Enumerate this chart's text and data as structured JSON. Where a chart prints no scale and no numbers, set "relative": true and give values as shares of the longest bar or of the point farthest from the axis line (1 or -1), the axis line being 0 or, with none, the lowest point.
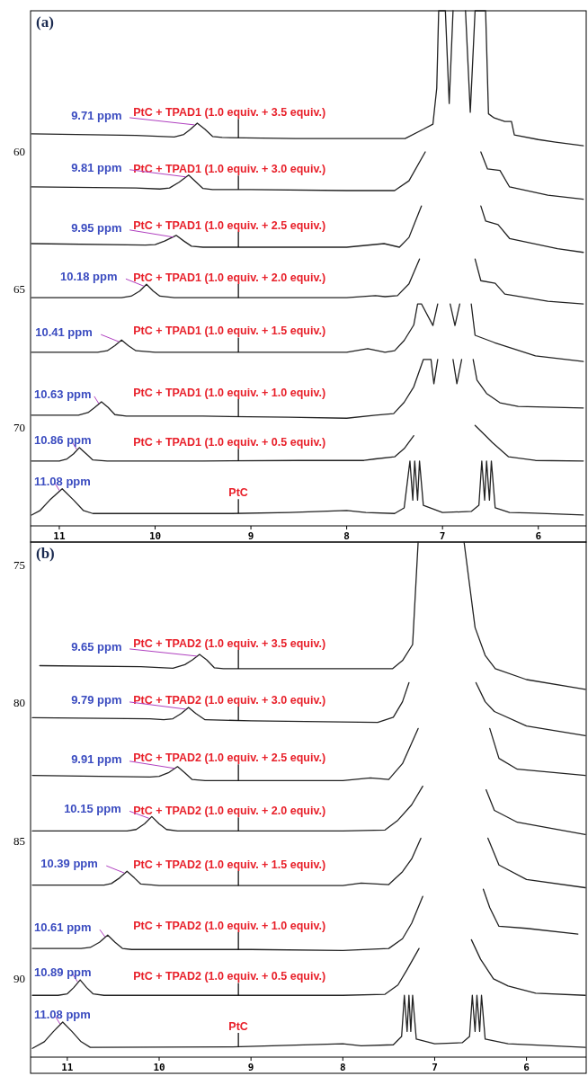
{
  "chart_data": [
    {
      "type": "line",
      "title": "(a)",
      "relative": true,
      "xlim": [
        11.3,
        5.5
      ],
      "xticks": [
        11,
        10,
        9,
        8,
        7,
        6
      ],
      "tick_labels": "x",
      "series": [
        {
          "name": "PtC",
          "color": "#222222",
          "x": [
            11.29,
            11.2,
            11.1,
            10.97,
            10.85,
            10.75,
            10.65,
            10.0,
            9.2,
            8.6,
            8.0,
            7.8,
            7.5,
            7.4,
            7.34,
            7.31,
            7.29,
            7.26,
            7.24,
            7.2,
            7.0,
            6.7,
            6.62,
            6.59,
            6.56,
            6.54,
            6.51,
            6.49,
            6.45,
            6.3,
            6.1,
            5.53
          ],
          "values": [
            0.021,
            0.03,
            0.05,
            0.072,
            0.05,
            0.03,
            0.024,
            0.024,
            0.024,
            0.026,
            0.03,
            0.026,
            0.024,
            0.035,
            0.126,
            0.05,
            0.126,
            0.05,
            0.126,
            0.04,
            0.026,
            0.028,
            0.04,
            0.126,
            0.05,
            0.126,
            0.05,
            0.126,
            0.035,
            0.026,
            0.025,
            0.021
          ]
        },
        {
          "name": "PtC + TPAD1 (1.0 equiv. + 0.5 equiv.)",
          "color": "#222222",
          "x": [
            11.29,
            11.0,
            10.92,
            10.85,
            10.79,
            10.72,
            10.65,
            10.5,
            9.5,
            8.5,
            7.82,
            7.7,
            7.5,
            7.4,
            7.3,
            7.0,
            6.66,
            6.55,
            6.48,
            6.31,
            6.03,
            5.53
          ],
          "values": [
            0.126,
            0.126,
            0.13,
            0.14,
            0.152,
            0.14,
            0.128,
            0.126,
            0.126,
            0.127,
            0.127,
            0.13,
            0.134,
            0.15,
            0.175,
            null,
            0.195,
            0.175,
            0.162,
            0.134,
            0.127,
            0.126
          ]
        },
        {
          "name": "PtC + TPAD1 (1.0 equiv. + 1.0 equiv.)",
          "color": "#222222",
          "x": [
            11.29,
            10.8,
            10.7,
            10.63,
            10.56,
            10.49,
            10.42,
            10.3,
            9.5,
            8.6,
            8.0,
            7.7,
            7.51,
            7.4,
            7.3,
            7.2,
            7.12,
            7.09,
            7.05,
            6.97,
            6.89,
            6.85,
            6.8,
            6.74,
            6.68,
            6.64,
            6.54,
            6.4,
            6.21,
            5.53
          ],
          "values": [
            0.215,
            0.215,
            0.22,
            0.23,
            0.241,
            0.23,
            0.216,
            0.213,
            0.213,
            0.211,
            0.209,
            0.215,
            0.218,
            0.24,
            0.27,
            0.323,
            0.323,
            0.276,
            0.323,
            null,
            0.323,
            0.276,
            0.323,
            null,
            0.323,
            0.283,
            0.257,
            0.239,
            0.232,
            0.229
          ]
        },
        {
          "name": "PtC + TPAD1 (1.0 equiv. + 1.5 equiv.)",
          "color": "#222222",
          "x": [
            11.29,
            10.6,
            10.5,
            10.42,
            10.35,
            10.28,
            10.2,
            10.0,
            9.0,
            8.0,
            7.78,
            7.6,
            7.5,
            7.4,
            7.3,
            7.26,
            7.22,
            7.1,
            7.05,
            6.98,
            6.92,
            6.87,
            6.82,
            6.76,
            6.7,
            6.66,
            6.46,
            6.03,
            5.53
          ],
          "values": [
            0.337,
            0.337,
            0.34,
            0.35,
            0.361,
            0.35,
            0.34,
            0.337,
            0.337,
            0.337,
            0.344,
            0.337,
            0.34,
            0.36,
            0.39,
            0.431,
            0.431,
            0.389,
            0.431,
            null,
            0.431,
            0.389,
            0.431,
            null,
            0.431,
            0.37,
            0.356,
            0.33,
            0.319
          ]
        },
        {
          "name": "PtC + TPAD1 (1.0 equiv. + 2.0 equiv.)",
          "color": "#222222",
          "x": [
            11.29,
            10.35,
            10.25,
            10.16,
            10.09,
            10.02,
            9.95,
            9.8,
            9.0,
            8.0,
            7.7,
            7.6,
            7.47,
            7.35,
            7.24,
            7.0,
            6.66,
            6.6,
            6.45,
            6.35,
            5.9,
            5.53
          ],
          "values": [
            0.443,
            0.443,
            0.446,
            0.456,
            0.469,
            0.456,
            0.446,
            0.443,
            0.443,
            0.443,
            0.447,
            0.445,
            0.447,
            0.47,
            0.518,
            null,
            0.518,
            0.476,
            0.471,
            0.45,
            0.436,
            0.431
          ]
        },
        {
          "name": "PtC + TPAD1 (1.0 equiv. + 2.5 equiv.)",
          "color": "#222222",
          "x": [
            11.29,
            10.1,
            10.0,
            9.9,
            9.78,
            9.7,
            9.62,
            9.5,
            9.0,
            8.0,
            7.61,
            7.45,
            7.35,
            7.22,
            7.0,
            6.6,
            6.55,
            6.42,
            6.3,
            5.8,
            5.53
          ],
          "values": [
            0.548,
            0.545,
            0.546,
            0.553,
            0.564,
            0.553,
            0.543,
            0.541,
            0.541,
            0.541,
            0.548,
            0.541,
            0.56,
            0.621,
            null,
            0.621,
            0.592,
            0.585,
            0.558,
            0.538,
            0.531
          ]
        },
        {
          "name": "PtC + TPAD1 (1.0 equiv. + 3.0 equiv.)",
          "color": "#222222",
          "x": [
            11.29,
            10.2,
            9.95,
            9.85,
            9.75,
            9.65,
            9.57,
            9.5,
            9.4,
            9.0,
            8.0,
            7.5,
            7.35,
            7.18,
            7.0,
            6.6,
            6.53,
            6.4,
            6.3,
            5.9,
            5.53
          ],
          "values": [
            0.658,
            0.656,
            0.654,
            0.656,
            0.667,
            0.681,
            0.667,
            0.655,
            0.653,
            0.653,
            0.651,
            0.651,
            0.67,
            0.726,
            null,
            0.726,
            0.693,
            0.69,
            0.658,
            0.642,
            0.634
          ]
        },
        {
          "name": "PtC + TPAD1 (1.0 equiv. + 3.5 equiv.)",
          "color": "#222222",
          "x": [
            11.29,
            10.2,
            9.8,
            9.7,
            9.63,
            9.56,
            9.48,
            9.4,
            9.3,
            8.54,
            7.39,
            7.2,
            7.1,
            7.06,
            7.04,
            6.97,
            6.93,
            6.89,
            6.8,
            6.76,
            6.71,
            6.66,
            6.55,
            6.52,
            6.46,
            6.35,
            6.28,
            6.25,
            6.0,
            5.82,
            5.53
          ],
          "values": [
            0.761,
            0.758,
            0.755,
            0.76,
            0.77,
            0.782,
            0.77,
            0.756,
            0.754,
            0.752,
            0.752,
            0.77,
            0.78,
            0.85,
            1,
            1,
            0.82,
            1,
            null,
            1,
            0.803,
            1,
            1,
            0.8,
            0.792,
            0.785,
            0.785,
            0.759,
            0.75,
            0.745,
            0.738
          ]
        }
      ],
      "annotations": [
        {
          "text": "11.08 ppm",
          "x": 10.97,
          "y": 0.072
        },
        {
          "text": "10.86 ppm",
          "x": 10.79,
          "y": 0.152
        },
        {
          "text": "10.63 ppm",
          "x": 10.56,
          "y": 0.241
        },
        {
          "text": "10.41 ppm",
          "x": 10.35,
          "y": 0.361
        },
        {
          "text": "10.18 ppm",
          "x": 10.09,
          "y": 0.469
        },
        {
          "text": "9.95 ppm",
          "x": 9.78,
          "y": 0.564
        },
        {
          "text": "9.81 ppm",
          "x": 9.65,
          "y": 0.681
        },
        {
          "text": "9.71 ppm",
          "x": 9.56,
          "y": 0.782
        },
        "60",
        "65",
        "70"
      ]
    },
    {
      "type": "line",
      "title": "(b)",
      "relative": true,
      "xlim": [
        11.4,
        5.35
      ],
      "xticks": [
        11,
        10,
        9,
        8,
        7,
        6
      ],
      "tick_labels": "x",
      "series": [
        {
          "name": "PtC",
          "color": "#222222",
          "x": [
            11.38,
            11.25,
            11.15,
            11.05,
            10.95,
            10.85,
            10.75,
            9.2,
            8.0,
            7.8,
            7.45,
            7.36,
            7.33,
            7.3,
            7.28,
            7.26,
            7.24,
            7.2,
            7.0,
            6.7,
            6.62,
            6.59,
            6.56,
            6.54,
            6.51,
            6.49,
            6.45,
            6.2,
            5.36
          ],
          "values": [
            0.017,
            0.03,
            0.05,
            0.068,
            0.05,
            0.03,
            0.019,
            0.02,
            0.026,
            0.022,
            0.024,
            0.04,
            0.12,
            0.05,
            0.12,
            0.05,
            0.12,
            0.035,
            0.026,
            0.028,
            0.04,
            0.12,
            0.05,
            0.12,
            0.05,
            0.12,
            0.035,
            0.026,
            0.019
          ]
        },
        {
          "name": "PtC + TPAD2 (1.0 equiv. + 0.5 equiv.)",
          "color": "#222222",
          "x": [
            11.38,
            11.1,
            11.0,
            10.93,
            10.86,
            10.79,
            10.72,
            10.6,
            9.5,
            8.0,
            7.54,
            7.4,
            7.3,
            7.17,
            6.9,
            6.6,
            6.5,
            6.36,
            6.2,
            5.9,
            5.36
          ],
          "values": [
            0.12,
            0.12,
            0.123,
            0.135,
            0.15,
            0.135,
            0.123,
            0.12,
            0.12,
            0.12,
            0.122,
            0.14,
            0.17,
            0.211,
            null,
            0.228,
            0.19,
            0.152,
            0.138,
            0.124,
            0.12
          ]
        },
        {
          "name": "PtC + TPAD2 (1.0 equiv. + 1.0 equiv.)",
          "color": "#222222",
          "x": [
            11.38,
            10.85,
            10.75,
            10.65,
            10.56,
            10.48,
            10.4,
            10.3,
            9.0,
            8.0,
            7.5,
            7.35,
            7.25,
            7.13,
            6.8,
            6.47,
            6.4,
            6.3,
            6.0,
            5.44
          ],
          "values": [
            0.211,
            0.211,
            0.213,
            0.223,
            0.237,
            0.223,
            0.211,
            0.209,
            0.209,
            0.207,
            0.211,
            0.23,
            0.26,
            0.312,
            null,
            0.326,
            0.29,
            0.254,
            0.25,
            0.239
          ]
        },
        {
          "name": "PtC + TPAD2 (1.0 equiv. + 1.5 equiv.)",
          "color": "#222222",
          "x": [
            11.38,
            10.6,
            10.52,
            10.43,
            10.35,
            10.27,
            10.2,
            10.0,
            9.0,
            8.0,
            7.8,
            7.5,
            7.35,
            7.25,
            7.15,
            6.8,
            6.42,
            6.3,
            6.0,
            5.36
          ],
          "values": [
            0.334,
            0.334,
            0.337,
            0.348,
            0.361,
            0.348,
            0.336,
            0.333,
            0.333,
            0.333,
            0.338,
            0.335,
            0.36,
            0.385,
            0.425,
            null,
            0.425,
            0.373,
            0.345,
            0.329
          ]
        },
        {
          "name": "PtC + TPAD2 (1.0 equiv. + 2.0 equiv.)",
          "color": "#222222",
          "x": [
            11.38,
            10.35,
            10.25,
            10.16,
            10.08,
            10.0,
            9.92,
            9.8,
            9.0,
            8.0,
            7.54,
            7.4,
            7.25,
            7.13,
            6.8,
            6.44,
            6.35,
            6.1,
            5.36
          ],
          "values": [
            0.439,
            0.439,
            0.442,
            0.453,
            0.467,
            0.453,
            0.442,
            0.439,
            0.439,
            0.439,
            0.441,
            0.46,
            0.49,
            0.526,
            null,
            0.519,
            0.479,
            0.456,
            0.432
          ]
        },
        {
          "name": "PtC + TPAD2 (1.0 equiv. + 2.5 equiv.)",
          "color": "#222222",
          "x": [
            11.38,
            10.1,
            10.0,
            9.9,
            9.8,
            9.72,
            9.64,
            9.5,
            9.0,
            8.0,
            7.7,
            7.5,
            7.35,
            7.18,
            6.8,
            6.4,
            6.3,
            6.1,
            5.36
          ],
          "values": [
            0.547,
            0.544,
            0.545,
            0.552,
            0.564,
            0.552,
            0.539,
            0.537,
            0.537,
            0.537,
            0.542,
            0.539,
            0.57,
            0.638,
            null,
            0.638,
            0.58,
            0.559,
            0.547
          ]
        },
        {
          "name": "PtC + TPAD2 (1.0 equiv. + 3.0 equiv.)",
          "color": "#222222",
          "x": [
            11.38,
            10.1,
            9.95,
            9.85,
            9.76,
            9.68,
            9.6,
            9.5,
            9.0,
            7.62,
            7.45,
            7.35,
            7.28,
            6.9,
            6.55,
            6.45,
            6.35,
            6.0,
            5.36
          ],
          "values": [
            0.659,
            0.657,
            0.655,
            0.657,
            0.667,
            0.679,
            0.667,
            0.655,
            0.653,
            0.65,
            0.66,
            0.69,
            0.727,
            null,
            0.727,
            0.69,
            0.671,
            0.643,
            0.624
          ]
        },
        {
          "name": "PtC + TPAD2 (1.0 equiv. + 3.5 equiv.)",
          "color": "#222222",
          "x": [
            11.3,
            10.2,
            9.85,
            9.72,
            9.64,
            9.56,
            9.48,
            9.4,
            9.3,
            8.0,
            7.46,
            7.35,
            7.24,
            7.18,
            6.9,
            6.68,
            6.56,
            6.45,
            6.34,
            6.0,
            5.36
          ],
          "values": [
            0.76,
            0.758,
            0.755,
            0.762,
            0.771,
            0.782,
            0.771,
            0.756,
            0.754,
            0.754,
            0.754,
            0.77,
            0.801,
            1,
            null,
            1,
            0.834,
            0.78,
            0.754,
            0.733,
            0.714
          ]
        }
      ],
      "annotations": [
        {
          "text": "11.08 ppm",
          "x": 11.05,
          "y": 0.068
        },
        {
          "text": "10.89 ppm",
          "x": 10.86,
          "y": 0.15
        },
        {
          "text": "10.61 ppm",
          "x": 10.56,
          "y": 0.237
        },
        {
          "text": "10.39 ppm",
          "x": 10.35,
          "y": 0.361
        },
        {
          "text": "10.15 ppm",
          "x": 10.08,
          "y": 0.467
        },
        {
          "text": "9.91 ppm",
          "x": 9.8,
          "y": 0.564
        },
        {
          "text": "9.79 ppm",
          "x": 9.68,
          "y": 0.679
        },
        {
          "text": "9.65 ppm",
          "x": 9.56,
          "y": 0.782
        },
        "75",
        "80",
        "85",
        "90"
      ]
    }
  ]
}
